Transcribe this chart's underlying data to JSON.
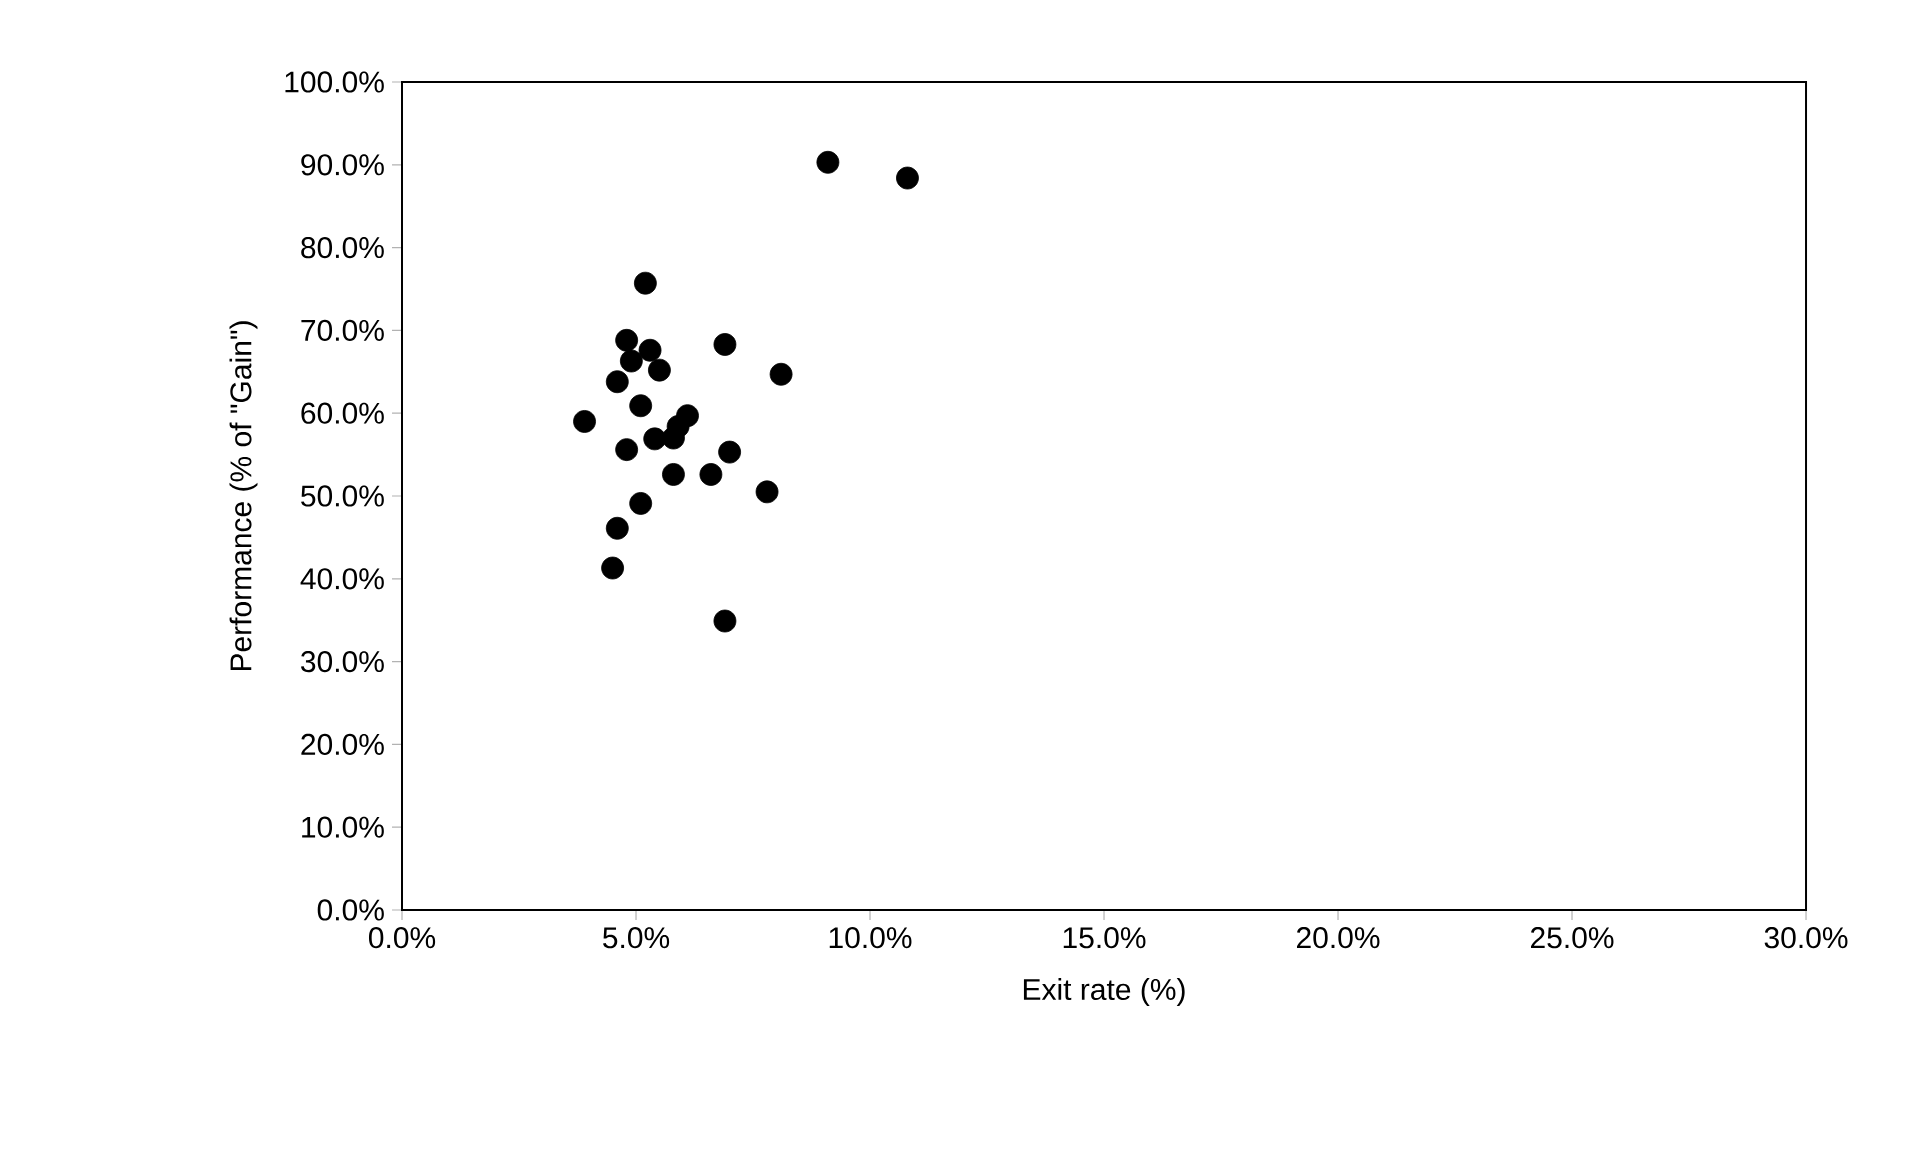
{
  "chart_data": {
    "type": "scatter",
    "xlabel": "Exit rate (%)",
    "ylabel": "Performance (% of \"Gain\")",
    "series": [
      {
        "color": "#000000",
        "x": [
          5.2,
          4.8,
          5.3,
          4.9,
          5.5,
          4.6,
          6.9,
          8.1,
          5.1,
          3.9,
          6.1,
          5.9,
          5.4,
          5.8,
          4.8,
          7.0,
          5.8,
          6.6,
          7.8,
          5.1,
          4.6,
          4.5,
          6.9,
          9.1,
          10.8
        ],
        "values": [
          75.7,
          68.8,
          67.6,
          66.3,
          65.2,
          63.8,
          68.3,
          64.7,
          60.9,
          59.0,
          59.7,
          58.4,
          56.9,
          57.0,
          55.6,
          55.3,
          52.6,
          52.6,
          50.5,
          49.1,
          46.1,
          41.3,
          34.9,
          90.3,
          88.4
        ]
      }
    ],
    "xlim": [
      0,
      30
    ],
    "ylim": [
      0,
      100
    ],
    "xticks": [
      {
        "value": 0,
        "label": "0.0%"
      },
      {
        "value": 5,
        "label": "5.0%"
      },
      {
        "value": 10,
        "label": "10.0%"
      },
      {
        "value": 15,
        "label": "15.0%"
      },
      {
        "value": 20,
        "label": "20.0%"
      },
      {
        "value": 25,
        "label": "25.0%"
      },
      {
        "value": 30,
        "label": "30.0%"
      }
    ],
    "yticks": [
      {
        "value": 0,
        "label": "0.0%"
      },
      {
        "value": 10,
        "label": "10.0%"
      },
      {
        "value": 20,
        "label": "20.0%"
      },
      {
        "value": 30,
        "label": "30.0%"
      },
      {
        "value": 40,
        "label": "40.0%"
      },
      {
        "value": 50,
        "label": "50.0%"
      },
      {
        "value": 60,
        "label": "60.0%"
      },
      {
        "value": 70,
        "label": "70.0%"
      },
      {
        "value": 80,
        "label": "80.0%"
      },
      {
        "value": 90,
        "label": "90.0%"
      },
      {
        "value": 100,
        "label": "100.0%"
      }
    ],
    "marker": "circle"
  }
}
